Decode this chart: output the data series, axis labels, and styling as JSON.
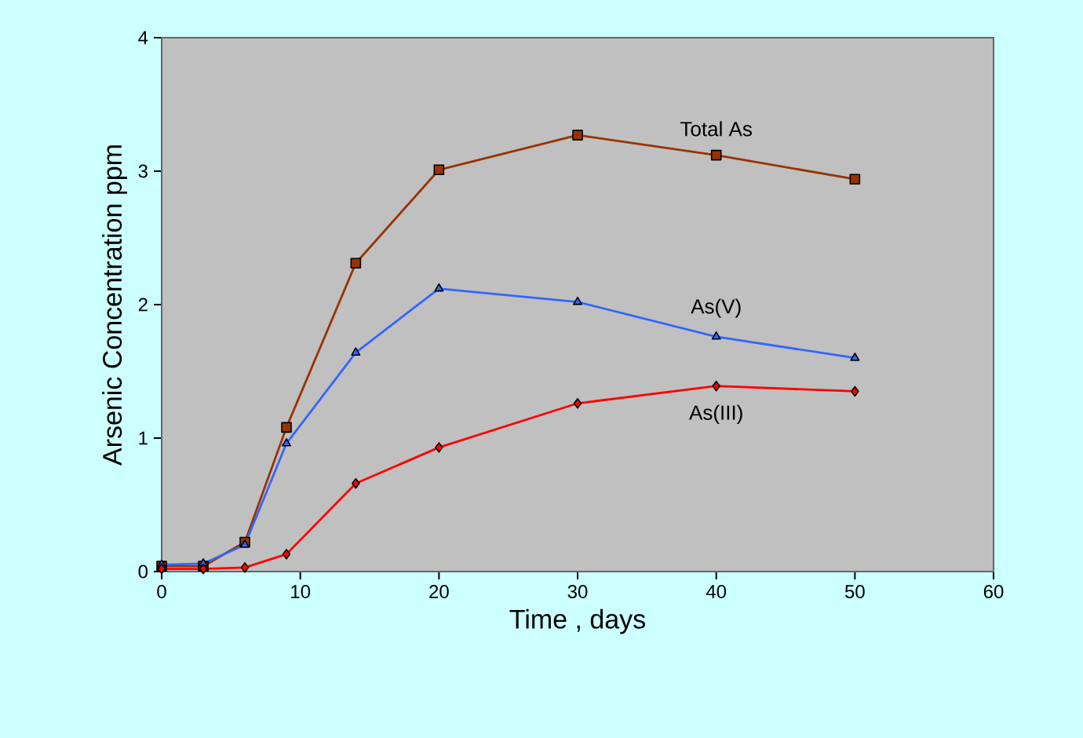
{
  "chart_data": {
    "type": "line",
    "xlabel": "Time , days",
    "ylabel": "Arsenic Concentration ppm",
    "xlim": [
      0,
      60
    ],
    "ylim": [
      0,
      4
    ],
    "xticks": [
      0,
      10,
      20,
      30,
      40,
      50,
      60
    ],
    "yticks": [
      0,
      1,
      2,
      3,
      4
    ],
    "legend": false,
    "x": [
      0,
      3,
      6,
      9,
      14,
      20,
      30,
      40,
      50
    ],
    "series": [
      {
        "name": "Total As",
        "color": "#993300",
        "marker": "square",
        "values": [
          0.04,
          0.04,
          0.22,
          1.08,
          2.31,
          3.01,
          3.27,
          3.12,
          2.94
        ]
      },
      {
        "name": "As(V)",
        "color": "#3366ff",
        "marker": "triangle",
        "values": [
          0.05,
          0.06,
          0.2,
          0.96,
          1.64,
          2.12,
          2.02,
          1.76,
          1.6
        ]
      },
      {
        "name": "As(III)",
        "color": "#ff0000",
        "marker": "diamond",
        "values": [
          0.02,
          0.02,
          0.03,
          0.13,
          0.66,
          0.93,
          1.26,
          1.39,
          1.35
        ]
      }
    ]
  }
}
